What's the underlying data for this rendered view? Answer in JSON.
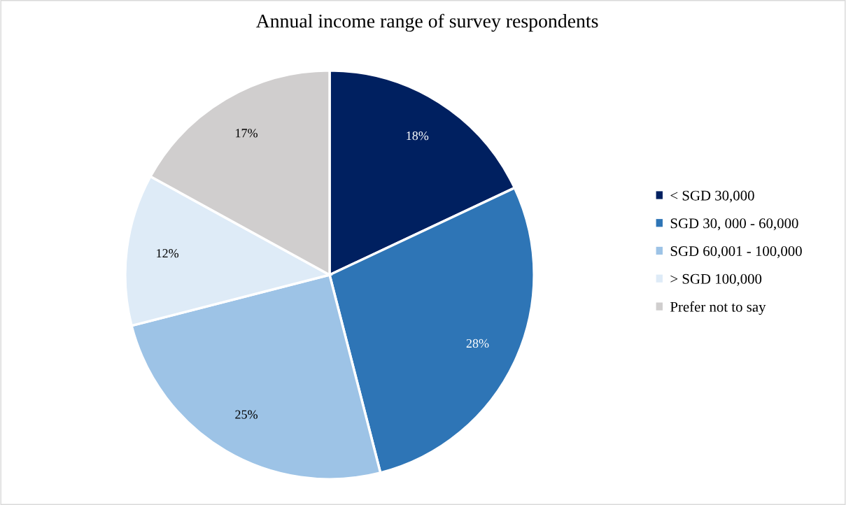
{
  "chart_data": {
    "type": "pie",
    "title": "Annual income range of survey respondents",
    "categories": [
      "< SGD 30,000",
      "SGD 30, 000 - 60,000",
      "SGD 60,001 - 100,000",
      "> SGD 100,000",
      "Prefer not to say"
    ],
    "values": [
      18,
      28,
      25,
      12,
      17
    ],
    "value_labels": [
      "18%",
      "28%",
      "25%",
      "12%",
      "17%"
    ],
    "colors": [
      "#002060",
      "#2e75b6",
      "#9dc3e6",
      "#deebf7",
      "#d0cece"
    ],
    "legend": "right"
  }
}
